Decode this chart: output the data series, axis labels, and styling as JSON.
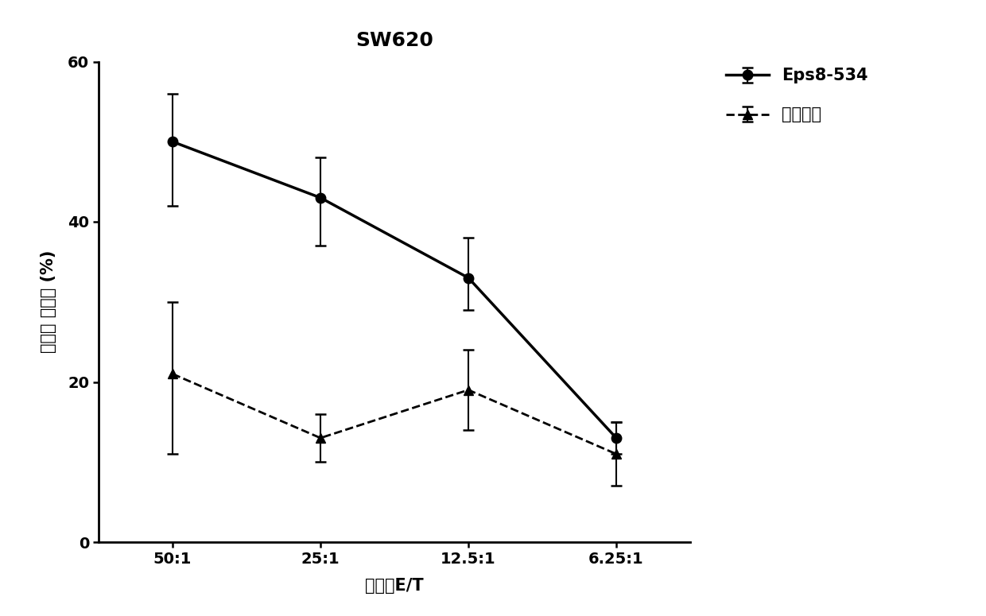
{
  "title": "SW620",
  "xlabel": "效靶比E/T",
  "ylabel": "特异性 杀伤率 (%)",
  "x_labels": [
    "50:1",
    "25:1",
    "12.5:1",
    "6.25:1"
  ],
  "x_positions": [
    0,
    1,
    2,
    3
  ],
  "ylim": [
    0,
    60
  ],
  "yticks": [
    0,
    20,
    40,
    60
  ],
  "series": [
    {
      "name": "Eps8-534",
      "y": [
        50,
        43,
        33,
        13
      ],
      "yerr_upper": [
        6,
        5,
        5,
        2
      ],
      "yerr_lower": [
        8,
        6,
        4,
        2
      ],
      "color": "#000000",
      "linestyle": "-",
      "marker": "o",
      "markersize": 9,
      "linewidth": 2.5
    },
    {
      "name": "溶剂对照",
      "y": [
        21,
        13,
        19,
        11
      ],
      "yerr_upper": [
        9,
        3,
        5,
        4
      ],
      "yerr_lower": [
        10,
        3,
        5,
        4
      ],
      "color": "#000000",
      "linestyle": "--",
      "marker": "^",
      "markersize": 9,
      "linewidth": 2.0
    }
  ],
  "background_color": "#ffffff",
  "title_fontsize": 18,
  "label_fontsize": 15,
  "tick_fontsize": 14,
  "legend_fontsize": 14,
  "legend_bold_fontsize": 15
}
